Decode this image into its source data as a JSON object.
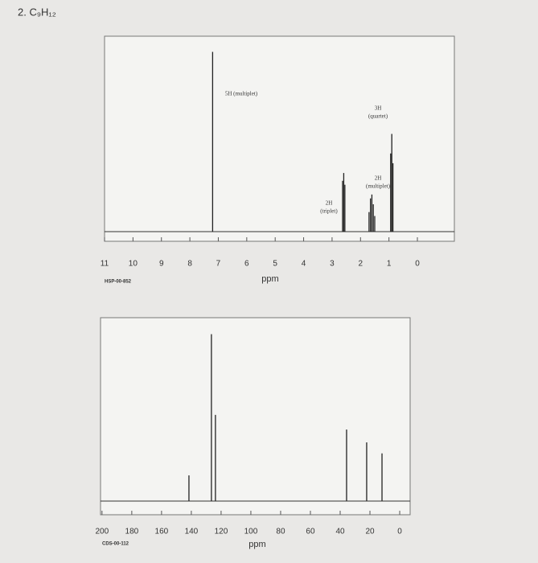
{
  "title": "2. C₉H₁₂",
  "chart_data": [
    {
      "type": "stem",
      "x": [
        7.2,
        2.63,
        2.59,
        2.55,
        1.7,
        1.65,
        1.6,
        1.55,
        1.5,
        0.94,
        0.9,
        0.86
      ],
      "values": [
        92,
        26,
        30,
        24,
        10,
        17,
        19,
        14,
        8,
        40,
        50,
        35
      ],
      "xlim": [
        11,
        -1.3
      ],
      "ylim": [
        0,
        100
      ],
      "xticks": [
        11,
        10,
        9,
        8,
        7,
        6,
        5,
        4,
        3,
        2,
        1,
        0
      ],
      "xlabel": "ppm",
      "code": "HSP-00-852",
      "color": "#222",
      "annotations": [
        {
          "lines": [
            "5H (multiplet)"
          ]
        },
        {
          "lines": [
            "3H",
            "(quartet)"
          ]
        },
        {
          "lines": [
            "2H",
            "(multiplet)"
          ]
        },
        {
          "lines": [
            "2H",
            "(triplet)"
          ]
        }
      ]
    },
    {
      "type": "stem",
      "x": [
        141.6,
        126.5,
        123.8,
        35.7,
        22.2,
        11.9
      ],
      "values": [
        14,
        91,
        47,
        39,
        32,
        26
      ],
      "xlim": [
        201,
        -7
      ],
      "ylim": [
        0,
        100
      ],
      "xticks": [
        200,
        180,
        160,
        140,
        120,
        100,
        80,
        60,
        40,
        20,
        0
      ],
      "xlabel": "ppm",
      "code": "CDS-00-112",
      "color": "#222",
      "annotations": []
    }
  ]
}
